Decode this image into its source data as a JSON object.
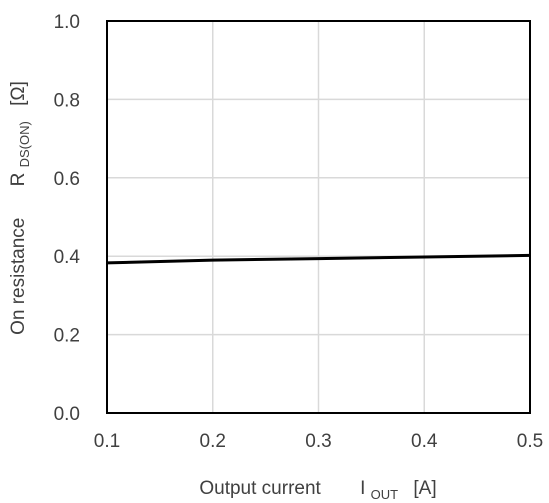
{
  "chart_data": {
    "type": "line",
    "xlabel": {
      "main": "Output current",
      "symbol": "I",
      "subscript": "OUT",
      "unit": "[A]"
    },
    "ylabel": {
      "main": "On resistance",
      "symbol": "R",
      "subscript": "DS(ON)",
      "unit": "[Ω]"
    },
    "xlim": [
      0.1,
      0.5
    ],
    "ylim": [
      0.0,
      1.0
    ],
    "x_ticks": [
      "0.1",
      "0.2",
      "0.3",
      "0.4",
      "0.5"
    ],
    "y_ticks": [
      "0.0",
      "0.2",
      "0.4",
      "0.6",
      "0.8",
      "1.0"
    ],
    "grid": true,
    "series": [
      {
        "x": [
          0.1,
          0.2,
          0.3,
          0.4,
          0.5
        ],
        "y": [
          0.383,
          0.39,
          0.394,
          0.398,
          0.402
        ]
      }
    ],
    "colors": {
      "line": "#000000",
      "grid": "#d9d9d9",
      "frame": "#000000",
      "text": "#404040"
    }
  }
}
